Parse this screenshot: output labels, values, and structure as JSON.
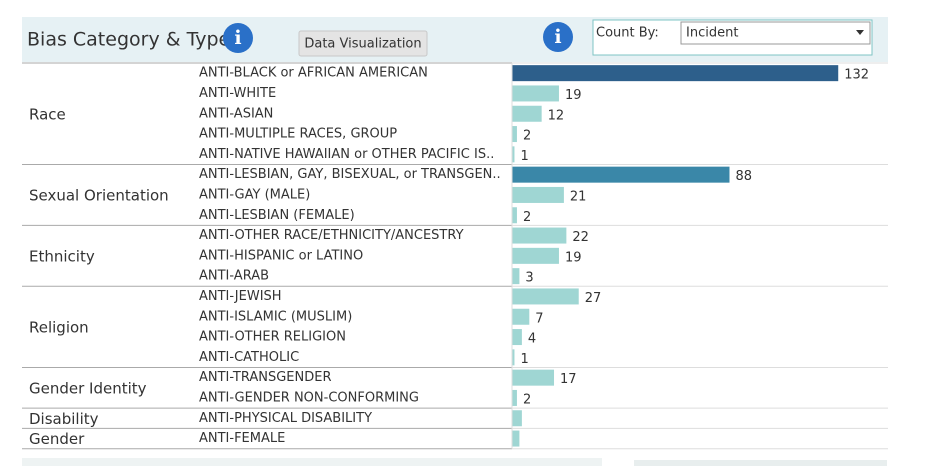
{
  "header": {
    "title": "Bias Category & Type",
    "tooltip": "Data Visualization",
    "count_by_label": "Count By:",
    "count_by_value": "Incident"
  },
  "chart_data": {
    "type": "grouped-bar",
    "xlim": [
      0,
      140
    ],
    "groups": [
      {
        "name": "Race",
        "categories": [
          "ANTI-BLACK or AFRICAN AMERICAN",
          "ANTI-WHITE",
          "ANTI-ASIAN",
          "ANTI-MULTIPLE RACES, GROUP",
          "ANTI-NATIVE HAWAIIAN or OTHER PACIFIC IS.."
        ],
        "values": [
          132,
          19,
          12,
          2,
          1
        ],
        "value_labels": [
          "132",
          "19",
          "12",
          "2",
          "1"
        ],
        "colors": [
          "#2d5f8b",
          "#9fd6d3",
          "#9fd6d3",
          "#9fd6d3",
          "#9fd6d3"
        ]
      },
      {
        "name": "Sexual Orientation",
        "categories": [
          "ANTI-LESBIAN, GAY, BISEXUAL, or TRANSGEN..",
          "ANTI-GAY (MALE)",
          "ANTI-LESBIAN (FEMALE)"
        ],
        "values": [
          88,
          21,
          2
        ],
        "value_labels": [
          "88",
          "21",
          "2"
        ],
        "colors": [
          "#3a87a8",
          "#9fd6d3",
          "#9fd6d3"
        ]
      },
      {
        "name": "Ethnicity",
        "categories": [
          "ANTI-OTHER RACE/ETHNICITY/ANCESTRY",
          "ANTI-HISPANIC or LATINO",
          "ANTI-ARAB"
        ],
        "values": [
          22,
          19,
          3
        ],
        "value_labels": [
          "22",
          "19",
          "3"
        ],
        "colors": [
          "#9fd6d3",
          "#9fd6d3",
          "#9fd6d3"
        ]
      },
      {
        "name": "Religion",
        "categories": [
          "ANTI-JEWISH",
          "ANTI-ISLAMIC (MUSLIM)",
          "ANTI-OTHER RELIGION",
          "ANTI-CATHOLIC"
        ],
        "values": [
          27,
          7,
          4,
          1
        ],
        "value_labels": [
          "27",
          "7",
          "4",
          "1"
        ],
        "colors": [
          "#9fd6d3",
          "#9fd6d3",
          "#9fd6d3",
          "#9fd6d3"
        ]
      },
      {
        "name": "Gender Identity",
        "categories": [
          "ANTI-TRANSGENDER",
          "ANTI-GENDER NON-CONFORMING"
        ],
        "values": [
          17,
          2
        ],
        "value_labels": [
          "17",
          "2"
        ],
        "colors": [
          "#9fd6d3",
          "#9fd6d3"
        ]
      },
      {
        "name": "Disability",
        "categories": [
          "ANTI-PHYSICAL DISABILITY"
        ],
        "values": [
          4
        ],
        "value_labels": [
          null
        ],
        "colors": [
          "#9fd6d3"
        ]
      },
      {
        "name": "Gender",
        "categories": [
          "ANTI-FEMALE"
        ],
        "values": [
          3
        ],
        "value_labels": [
          null
        ],
        "colors": [
          "#9fd6d3"
        ]
      }
    ]
  }
}
